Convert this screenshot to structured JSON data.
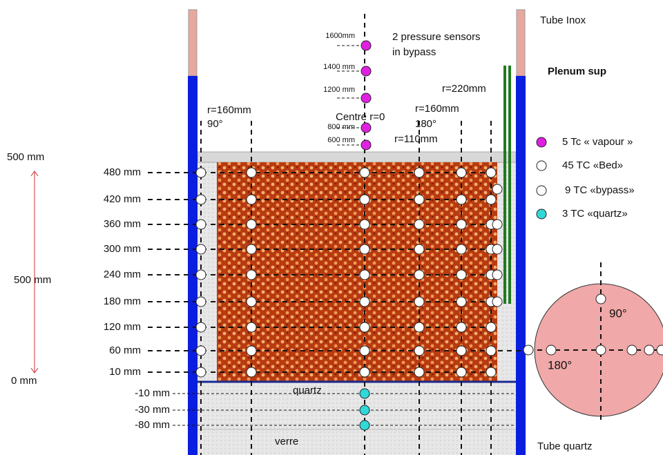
{
  "labels": {
    "tube_inox": "Tube Inox",
    "tube_quartz": "Tube quartz",
    "plenum": "Plenum sup",
    "bypass_note": [
      "2 pressure sensors",
      "in bypass"
    ],
    "centre": "Centre r=0",
    "quartz": "quartz",
    "verre": "verre"
  },
  "radius_labels": {
    "left_r": "r=160mm",
    "left_angle": "90°",
    "right_r": "r=160mm",
    "right_angle": "180°",
    "r110": "r=110mm",
    "r220": "r=220mm"
  },
  "vapour_heights": [
    "1600mm",
    "1400 mm",
    "1200 mm",
    "800 mm",
    "600 mm"
  ],
  "bed_levels": [
    "480 mm",
    "420 mm",
    "360 mm",
    "300 mm",
    "240 mm",
    "180 mm",
    "120 mm",
    "60 mm",
    "10 mm"
  ],
  "quartz_levels": [
    "-10 mm",
    "-30 mm",
    "-80 mm"
  ],
  "scale": {
    "top": "500 mm",
    "middle": "500 mm",
    "bottom": "0 mm"
  },
  "legend": [
    "5 Tc « vapour »",
    "45 TC «Bed»",
    "9 TC «bypass»",
    "3 TC «quartz»"
  ],
  "section": {
    "angle_90": "90°",
    "angle_180": "180°"
  }
}
